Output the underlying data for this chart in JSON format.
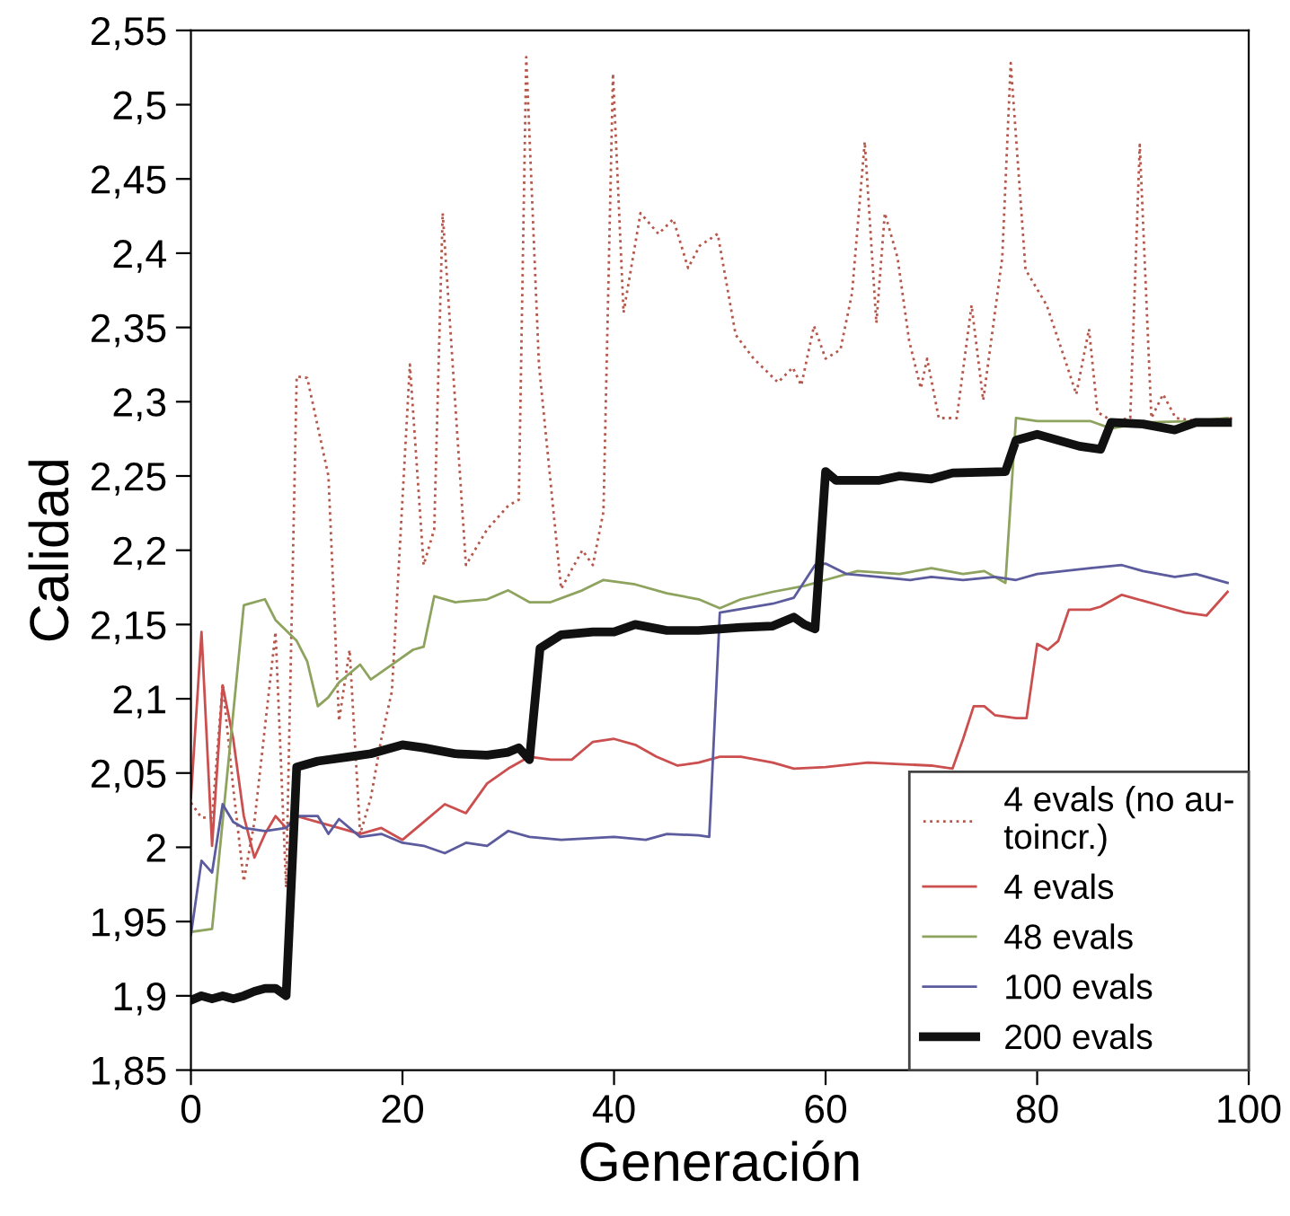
{
  "chart_data": {
    "type": "line",
    "xlabel": "Generación",
    "ylabel": "Calidad",
    "xlim": [
      0,
      100
    ],
    "xticks": [
      0,
      20,
      40,
      60,
      80,
      100
    ],
    "ylim": [
      1.85,
      2.55
    ],
    "yticks": [
      {
        "value": 1.85,
        "label": "1,85"
      },
      {
        "value": 1.9,
        "label": "1,9"
      },
      {
        "value": 1.95,
        "label": "1,95"
      },
      {
        "value": 2.0,
        "label": "2"
      },
      {
        "value": 2.05,
        "label": "2,05"
      },
      {
        "value": 2.1,
        "label": "2,1"
      },
      {
        "value": 2.15,
        "label": "2,15"
      },
      {
        "value": 2.2,
        "label": "2,2"
      },
      {
        "value": 2.25,
        "label": "2,25"
      },
      {
        "value": 2.3,
        "label": "2,3"
      },
      {
        "value": 2.35,
        "label": "2,35"
      },
      {
        "value": 2.4,
        "label": "2,4"
      },
      {
        "value": 2.45,
        "label": "2,45"
      },
      {
        "value": 2.5,
        "label": "2,5"
      },
      {
        "value": 2.55,
        "label": "2,55"
      }
    ],
    "grid": false,
    "legend": "bottom right",
    "series": [
      {
        "name": "4 evals (no au-\ntoincr.)",
        "color": "#b5574a",
        "line_style": "dotted",
        "x": [
          0,
          1,
          2,
          3,
          4,
          5,
          6,
          8,
          9,
          10,
          11,
          13,
          14,
          15,
          16,
          17,
          18,
          19,
          20.7,
          22,
          23,
          23.8,
          26,
          28,
          30,
          31,
          31.7,
          32.9,
          35,
          37,
          38,
          39,
          39.9,
          40.9,
          42.5,
          44.2,
          45.6,
          47,
          48.1,
          49.8,
          51.5,
          53.2,
          55.5,
          56.9,
          57.7,
          58.9,
          60,
          61.4,
          62.5,
          63.7,
          64.8,
          65.6,
          66.8,
          67.9,
          69,
          69.6,
          70.7,
          72.4,
          73.8,
          74.9,
          76.7,
          77.5,
          78.9,
          80.9,
          82.6,
          83.7,
          84.9,
          85.7,
          87.1,
          88.8,
          89.7,
          90.8,
          91.9,
          93.1,
          95.1,
          98.5
        ],
        "values": [
          2.03,
          2.02,
          2.02,
          2.11,
          2.04,
          1.977,
          2.017,
          2.145,
          1.973,
          2.317,
          2.316,
          2.25,
          2.085,
          2.133,
          2.009,
          2.033,
          2.073,
          2.105,
          2.325,
          2.19,
          2.214,
          2.427,
          2.19,
          2.214,
          2.23,
          2.234,
          2.532,
          2.325,
          2.174,
          2.2,
          2.19,
          2.226,
          2.521,
          2.36,
          2.427,
          2.413,
          2.423,
          2.39,
          2.405,
          2.413,
          2.345,
          2.329,
          2.313,
          2.323,
          2.311,
          2.351,
          2.329,
          2.335,
          2.373,
          2.475,
          2.353,
          2.427,
          2.397,
          2.341,
          2.309,
          2.329,
          2.289,
          2.289,
          2.365,
          2.301,
          2.397,
          2.528,
          2.389,
          2.365,
          2.329,
          2.305,
          2.349,
          2.293,
          2.287,
          2.289,
          2.473,
          2.289,
          2.305,
          2.289,
          2.287,
          2.289
        ]
      },
      {
        "name": "4 evals",
        "color": "#cc4f4f",
        "x": [
          0,
          1,
          2,
          3,
          4,
          5,
          6,
          7,
          8,
          9,
          10,
          12,
          14,
          16,
          18,
          20,
          22,
          24,
          26,
          28,
          30,
          32,
          34,
          36,
          38,
          40,
          42,
          44,
          46,
          48,
          50,
          52,
          55,
          57,
          60,
          64,
          67,
          70,
          72,
          73,
          74,
          75,
          76,
          78,
          79,
          80,
          81,
          82,
          83,
          85,
          86,
          88,
          90,
          92,
          94,
          96,
          98
        ],
        "values": [
          2.033,
          2.145,
          2.001,
          2.109,
          2.073,
          2.021,
          1.993,
          2.009,
          2.021,
          2.013,
          2.021,
          2.017,
          2.013,
          2.009,
          2.013,
          2.005,
          2.017,
          2.029,
          2.023,
          2.043,
          2.053,
          2.061,
          2.059,
          2.059,
          2.071,
          2.073,
          2.069,
          2.061,
          2.055,
          2.057,
          2.061,
          2.061,
          2.057,
          2.053,
          2.054,
          2.057,
          2.056,
          2.055,
          2.053,
          2.073,
          2.095,
          2.095,
          2.089,
          2.087,
          2.087,
          2.137,
          2.133,
          2.139,
          2.16,
          2.16,
          2.162,
          2.17,
          2.166,
          2.162,
          2.158,
          2.156,
          2.172
        ]
      },
      {
        "name": "48 evals",
        "color": "#8da35e",
        "x": [
          0,
          2,
          5,
          7,
          8,
          10,
          11,
          12,
          13,
          14,
          16,
          17,
          19,
          21,
          22,
          23,
          25,
          28,
          30,
          32,
          34,
          37,
          39,
          42,
          45,
          48,
          50,
          52,
          55,
          58,
          60,
          63,
          67,
          70,
          73,
          75,
          77,
          78,
          80,
          85,
          87,
          90,
          95,
          98
        ],
        "values": [
          1.943,
          1.945,
          2.163,
          2.167,
          2.153,
          2.139,
          2.125,
          2.095,
          2.101,
          2.111,
          2.123,
          2.113,
          2.123,
          2.133,
          2.135,
          2.169,
          2.165,
          2.167,
          2.173,
          2.165,
          2.165,
          2.173,
          2.18,
          2.177,
          2.171,
          2.167,
          2.161,
          2.167,
          2.172,
          2.176,
          2.18,
          2.186,
          2.184,
          2.188,
          2.184,
          2.186,
          2.178,
          2.289,
          2.287,
          2.287,
          2.282,
          2.286,
          2.287,
          2.289
        ]
      },
      {
        "name": "100 evals",
        "color": "#5b5b9e",
        "x": [
          0,
          1,
          2,
          3,
          4,
          5,
          7,
          9,
          10,
          12,
          13,
          14,
          16,
          18,
          20,
          22,
          24,
          26,
          28,
          30,
          32,
          35,
          40,
          43,
          45,
          48,
          49,
          50,
          55,
          57,
          59,
          60,
          62,
          65,
          68,
          70,
          73,
          76,
          78,
          80,
          85,
          88,
          90,
          93,
          95,
          98
        ],
        "values": [
          1.941,
          1.991,
          1.983,
          2.029,
          2.017,
          2.013,
          2.011,
          2.013,
          2.021,
          2.021,
          2.009,
          2.019,
          2.007,
          2.009,
          2.003,
          2.001,
          1.996,
          2.003,
          2.001,
          2.011,
          2.007,
          2.005,
          2.007,
          2.005,
          2.009,
          2.008,
          2.007,
          2.158,
          2.164,
          2.168,
          2.19,
          2.191,
          2.184,
          2.182,
          2.18,
          2.182,
          2.18,
          2.182,
          2.18,
          2.184,
          2.188,
          2.19,
          2.186,
          2.182,
          2.184,
          2.178
        ]
      },
      {
        "name": "200 evals",
        "color": "#111111",
        "x": [
          0,
          1,
          2,
          3,
          4,
          5,
          6,
          7,
          8,
          9,
          10,
          12,
          15,
          17,
          20,
          22,
          25,
          28,
          30,
          31,
          32,
          33,
          35,
          38,
          40,
          42,
          45,
          48,
          50,
          52,
          55,
          57,
          58,
          59,
          60,
          61,
          65,
          67,
          70,
          72,
          77,
          78,
          80,
          84,
          86,
          87,
          90,
          93,
          95,
          98
        ],
        "values": [
          1.897,
          1.9,
          1.898,
          1.9,
          1.898,
          1.9,
          1.903,
          1.905,
          1.905,
          1.9,
          2.054,
          2.058,
          2.061,
          2.063,
          2.069,
          2.067,
          2.063,
          2.062,
          2.064,
          2.067,
          2.059,
          2.134,
          2.143,
          2.145,
          2.145,
          2.15,
          2.146,
          2.146,
          2.147,
          2.148,
          2.149,
          2.155,
          2.15,
          2.147,
          2.253,
          2.247,
          2.247,
          2.25,
          2.248,
          2.252,
          2.253,
          2.274,
          2.278,
          2.27,
          2.268,
          2.286,
          2.285,
          2.281,
          2.286,
          2.286
        ]
      }
    ]
  }
}
